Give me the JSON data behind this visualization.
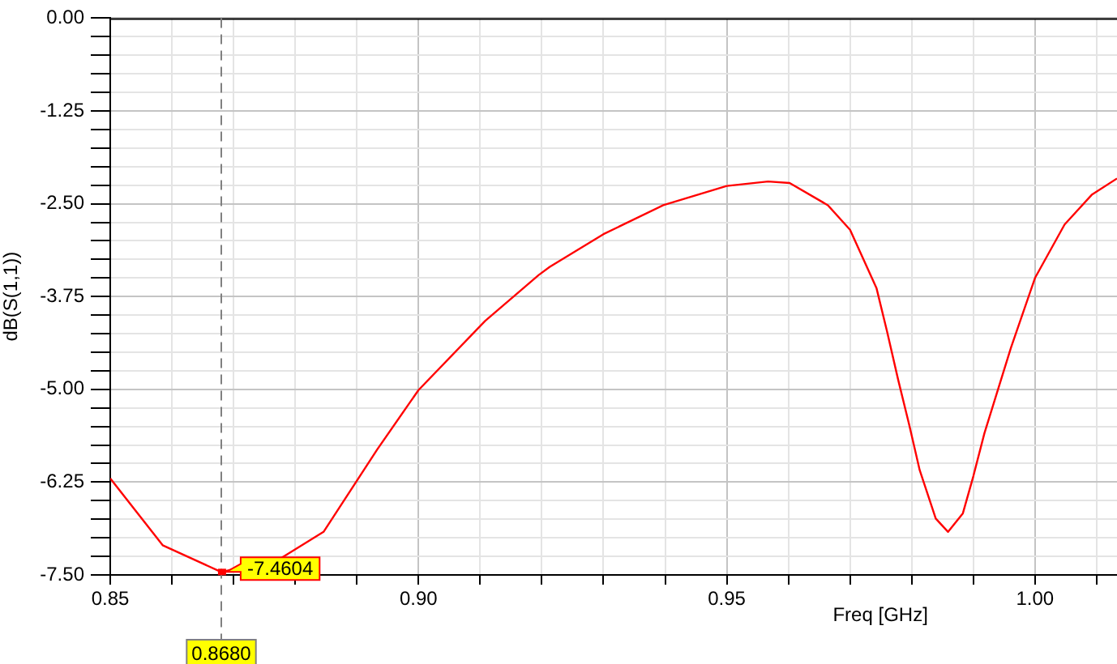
{
  "chart_data": {
    "type": "line",
    "xlabel": "Freq [GHz]",
    "ylabel": "dB(S(1,1))",
    "x": [
      0.85,
      0.8585,
      0.868,
      0.8776,
      0.8846,
      0.8933,
      0.9,
      0.9108,
      0.9195,
      0.9213,
      0.93,
      0.9397,
      0.95,
      0.9567,
      0.9602,
      0.9664,
      0.97,
      0.9743,
      0.976,
      0.9778,
      0.9796,
      0.9813,
      0.9839,
      0.9859,
      0.9883,
      0.99,
      0.9918,
      0.9961,
      1.0,
      1.0048,
      1.0092,
      1.0133
    ],
    "series": [
      {
        "color": "#ff0000",
        "values": [
          -6.2,
          -7.1,
          -7.4604,
          -7.28,
          -6.92,
          -5.81,
          -5.01,
          -4.08,
          -3.46,
          -3.35,
          -2.91,
          -2.52,
          -2.26,
          -2.2,
          -2.22,
          -2.52,
          -2.85,
          -3.64,
          -4.22,
          -4.87,
          -5.48,
          -6.09,
          -6.74,
          -6.92,
          -6.67,
          -6.17,
          -5.59,
          -4.44,
          -3.5,
          -2.78,
          -2.38,
          -2.16
        ]
      }
    ],
    "xlim": [
      0.85,
      1.0133
    ],
    "xticks": [
      0.85,
      {
        "value": 0.86,
        "label": null
      },
      {
        "value": 0.87,
        "label": null
      },
      {
        "value": 0.88,
        "label": null
      },
      {
        "value": 0.89,
        "label": null
      },
      {
        "value": 0.9,
        "label": "0.90"
      },
      {
        "value": 0.91,
        "label": null
      },
      {
        "value": 0.92,
        "label": null
      },
      {
        "value": 0.93,
        "label": null
      },
      {
        "value": 0.94,
        "label": null
      },
      0.95,
      {
        "value": 0.96,
        "label": null
      },
      {
        "value": 0.97,
        "label": null
      },
      {
        "value": 0.98,
        "label": null
      },
      {
        "value": 0.99,
        "label": null
      },
      {
        "value": 1.0,
        "label": "1.00"
      },
      {
        "value": 1.01,
        "label": null
      }
    ],
    "ylim": [
      -7.5,
      0
    ],
    "yticks": [
      {
        "value": 0,
        "label": "0.00"
      },
      {
        "value": -0.25,
        "label": null
      },
      {
        "value": -0.5,
        "label": null
      },
      {
        "value": -0.75,
        "label": null
      },
      {
        "value": -1,
        "label": null
      },
      -1.25,
      {
        "value": -1.5,
        "label": null
      },
      {
        "value": -1.75,
        "label": null
      },
      {
        "value": -2,
        "label": null
      },
      {
        "value": -2.25,
        "label": null
      },
      {
        "value": -2.5,
        "label": "-2.50"
      },
      {
        "value": -2.75,
        "label": null
      },
      {
        "value": -3,
        "label": null
      },
      {
        "value": -3.25,
        "label": null
      },
      {
        "value": -3.5,
        "label": null
      },
      -3.75,
      {
        "value": -4,
        "label": null
      },
      {
        "value": -4.25,
        "label": null
      },
      {
        "value": -4.5,
        "label": null
      },
      {
        "value": -4.75,
        "label": null
      },
      {
        "value": -5,
        "label": "-5.00"
      },
      {
        "value": -5.25,
        "label": null
      },
      {
        "value": -5.5,
        "label": null
      },
      {
        "value": -5.75,
        "label": null
      },
      {
        "value": -6,
        "label": null
      },
      -6.25,
      {
        "value": -6.5,
        "label": null
      },
      {
        "value": -6.75,
        "label": null
      },
      {
        "value": -7,
        "label": null
      },
      {
        "value": -7.25,
        "label": null
      },
      {
        "value": -7.5,
        "label": "-7.50"
      }
    ],
    "grid": true,
    "legend": false,
    "marker": "none",
    "line_style": "solid",
    "ref_lines": [
      {
        "axis": "x",
        "value": 0.868,
        "label": "0.8680",
        "color": "#808080",
        "line_style": "dashed"
      }
    ],
    "annotations": [
      {
        "text": "-7.4604",
        "x": 0.868,
        "y": -7.4604
      }
    ]
  }
}
